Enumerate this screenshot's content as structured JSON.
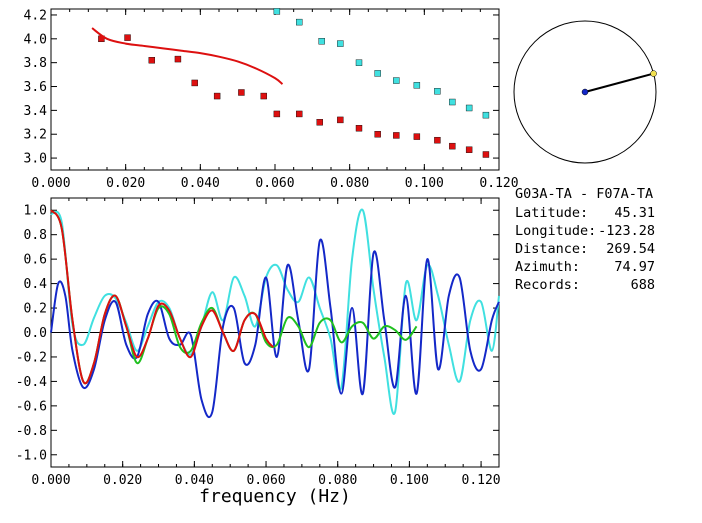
{
  "chart_data": [
    {
      "type": "scatter",
      "xlim": [
        0.0,
        0.12
      ],
      "ylim": [
        2.9,
        4.25
      ],
      "x_ticks": [
        "0.000",
        "0.020",
        "0.040",
        "0.060",
        "0.080",
        "0.100",
        "0.120"
      ],
      "y_ticks": [
        "3.0",
        "3.2",
        "3.4",
        "3.6",
        "3.8",
        "4.0",
        "4.2"
      ],
      "series": [
        {
          "color": "#dd1010",
          "marker": "square",
          "x": [
            0.0135,
            0.0205,
            0.027,
            0.034,
            0.0385,
            0.0445,
            0.051,
            0.057,
            0.0605,
            0.0665,
            0.072,
            0.0775,
            0.0825,
            0.0875,
            0.0925,
            0.098,
            0.1035,
            0.1075,
            0.112,
            0.1165
          ],
          "y": [
            4.0,
            4.01,
            3.82,
            3.83,
            3.63,
            3.52,
            3.55,
            3.52,
            3.37,
            3.37,
            3.3,
            3.32,
            3.25,
            3.2,
            3.19,
            3.18,
            3.15,
            3.1,
            3.07,
            3.03
          ]
        },
        {
          "color": "#40e0e0",
          "marker": "square",
          "x": [
            0.0605,
            0.0665,
            0.0725,
            0.0775,
            0.0825,
            0.0875,
            0.0925,
            0.098,
            0.1035,
            0.1075,
            0.112,
            0.1165
          ],
          "y": [
            4.23,
            4.14,
            3.98,
            3.96,
            3.8,
            3.71,
            3.65,
            3.61,
            3.56,
            3.47,
            3.42,
            3.36
          ]
        },
        {
          "color": "#dd1010",
          "marker": "line",
          "x": [
            0.011,
            0.015,
            0.02,
            0.025,
            0.03,
            0.035,
            0.04,
            0.045,
            0.05,
            0.055,
            0.06,
            0.062
          ],
          "y": [
            4.09,
            4.0,
            3.96,
            3.94,
            3.92,
            3.9,
            3.88,
            3.85,
            3.81,
            3.75,
            3.67,
            3.62
          ]
        }
      ]
    },
    {
      "type": "line",
      "xlim": [
        0.0,
        0.125
      ],
      "ylim": [
        -1.1,
        1.1
      ],
      "xlabel": "frequency (Hz)",
      "x_ticks": [
        "0.000",
        "0.020",
        "0.040",
        "0.060",
        "0.080",
        "0.100",
        "0.120"
      ],
      "y_ticks": [
        "1.0",
        "0.8",
        "0.6",
        "0.4",
        "0.2",
        "0.0",
        "-0.2",
        "-0.4",
        "-0.6",
        "-0.8",
        "-1.0"
      ],
      "series": [
        {
          "color": "#40e0e0",
          "x": [
            0.0,
            0.003,
            0.006,
            0.009,
            0.012,
            0.015,
            0.018,
            0.021,
            0.024,
            0.027,
            0.03,
            0.033,
            0.036,
            0.039,
            0.042,
            0.045,
            0.048,
            0.051,
            0.054,
            0.057,
            0.06,
            0.063,
            0.066,
            0.069,
            0.072,
            0.075,
            0.078,
            0.081,
            0.084,
            0.087,
            0.09,
            0.093,
            0.096,
            0.099,
            0.102,
            0.105,
            0.108,
            0.111,
            0.114,
            0.117,
            0.12,
            0.123,
            0.125
          ],
          "y": [
            0.97,
            0.9,
            0.06,
            -0.1,
            0.12,
            0.3,
            0.28,
            0.08,
            -0.15,
            0.05,
            0.25,
            0.2,
            -0.05,
            -0.18,
            0.05,
            0.33,
            0.1,
            0.45,
            0.3,
            0.05,
            0.45,
            0.55,
            0.35,
            0.25,
            0.45,
            0.2,
            -0.05,
            -0.45,
            0.6,
            1.0,
            0.35,
            -0.2,
            -0.65,
            0.4,
            0.1,
            0.55,
            0.3,
            -0.1,
            -0.4,
            0.1,
            0.25,
            -0.15,
            0.3
          ]
        },
        {
          "color": "#1428c8",
          "x": [
            0.0,
            0.002,
            0.004,
            0.006,
            0.009,
            0.012,
            0.015,
            0.018,
            0.021,
            0.024,
            0.027,
            0.03,
            0.033,
            0.036,
            0.039,
            0.042,
            0.045,
            0.048,
            0.051,
            0.054,
            0.057,
            0.06,
            0.063,
            0.066,
            0.069,
            0.072,
            0.075,
            0.078,
            0.081,
            0.084,
            0.087,
            0.09,
            0.093,
            0.096,
            0.099,
            0.102,
            0.105,
            0.108,
            0.111,
            0.114,
            0.117,
            0.12,
            0.123,
            0.125
          ],
          "y": [
            0.0,
            0.4,
            0.3,
            -0.15,
            -0.45,
            -0.3,
            0.1,
            0.25,
            -0.1,
            -0.2,
            0.15,
            0.25,
            -0.05,
            -0.1,
            -0.02,
            -0.55,
            -0.65,
            0.05,
            0.2,
            -0.25,
            -0.1,
            0.45,
            -0.2,
            0.55,
            0.1,
            -0.3,
            0.75,
            0.2,
            -0.5,
            0.2,
            -0.5,
            0.65,
            0.1,
            -0.45,
            0.3,
            -0.5,
            0.6,
            -0.3,
            0.3,
            0.45,
            -0.15,
            -0.3,
            0.1,
            0.25
          ]
        },
        {
          "color": "#20c020",
          "x": [
            0.0,
            0.003,
            0.006,
            0.009,
            0.012,
            0.015,
            0.018,
            0.021,
            0.024,
            0.027,
            0.03,
            0.033,
            0.036,
            0.039,
            0.042,
            0.045,
            0.048,
            0.051,
            0.054,
            0.057,
            0.06,
            0.063,
            0.066,
            0.069,
            0.072,
            0.075,
            0.078,
            0.081,
            0.084,
            0.087,
            0.09,
            0.093,
            0.096,
            0.099,
            0.102
          ],
          "y": [
            1.0,
            0.85,
            0.1,
            -0.4,
            -0.25,
            0.15,
            0.3,
            0.05,
            -0.25,
            -0.05,
            0.2,
            0.15,
            -0.12,
            -0.15,
            0.08,
            0.2,
            0.0,
            -0.15,
            0.1,
            0.15,
            -0.08,
            -0.1,
            0.12,
            0.05,
            -0.12,
            0.08,
            0.1,
            -0.08,
            0.05,
            0.08,
            -0.05,
            0.05,
            0.02,
            -0.06,
            0.05
          ]
        },
        {
          "color": "#dd1010",
          "x": [
            0.0,
            0.003,
            0.006,
            0.009,
            0.012,
            0.015,
            0.018,
            0.021,
            0.024,
            0.027,
            0.03,
            0.033,
            0.036,
            0.039,
            0.042,
            0.045,
            0.048,
            0.051,
            0.054,
            0.057,
            0.06,
            0.062
          ],
          "y": [
            1.0,
            0.85,
            0.1,
            -0.4,
            -0.25,
            0.15,
            0.3,
            0.05,
            -0.2,
            -0.05,
            0.22,
            0.18,
            -0.05,
            -0.2,
            0.05,
            0.18,
            0.0,
            -0.15,
            0.1,
            0.15,
            -0.05,
            -0.12
          ]
        }
      ]
    }
  ],
  "info": {
    "station_pair": "G03A-TA - F07A-TA",
    "rows": [
      {
        "label": "Latitude:",
        "value": "45.31"
      },
      {
        "label": "Longitude:",
        "value": "-123.28"
      },
      {
        "label": "Distance:",
        "value": "269.54"
      },
      {
        "label": "Azimuth:",
        "value": "74.97"
      },
      {
        "label": "Records:",
        "value": "688"
      }
    ]
  },
  "azimuth_deg": 74.97,
  "colors": {
    "axis": "#000000",
    "dot": "#1428c8",
    "tip": "#f0e050"
  }
}
